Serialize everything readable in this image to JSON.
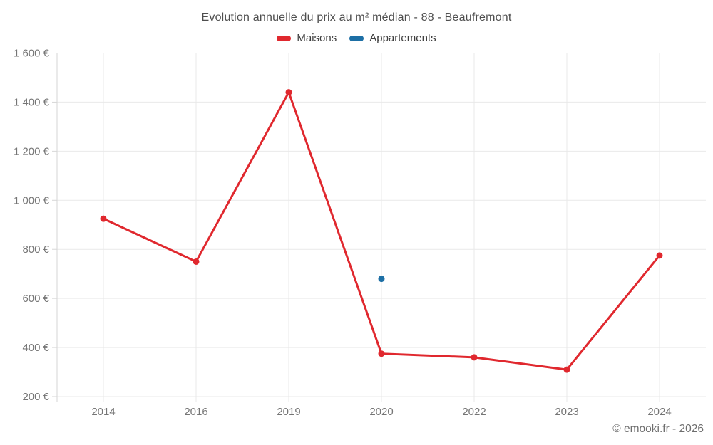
{
  "title": "Evolution annuelle du prix au m² médian - 88 - Beaufremont",
  "copyright": "© emooki.fr - 2026",
  "colors": {
    "maisons_red": "#e0282e",
    "appartements_blue": "#1d6fa5",
    "gridline": "#e9e9e9",
    "axis_line": "#d6d6d6",
    "tick_text": "#757575",
    "title_text": "#4e4e4e",
    "legend_text": "#3d3d3d"
  },
  "chart_data": {
    "type": "line",
    "title": "Evolution annuelle du prix au m² médian - 88 - Beaufremont",
    "categories": [
      "2014",
      "2016",
      "2019",
      "2020",
      "2022",
      "2023",
      "2024"
    ],
    "series": [
      {
        "name": "Maisons",
        "color": "#e0282e",
        "style": "line+markers",
        "values": [
          925,
          750,
          1440,
          375,
          360,
          310,
          775
        ]
      },
      {
        "name": "Appartements",
        "color": "#1d6fa5",
        "style": "markers",
        "values": [
          null,
          null,
          null,
          680,
          null,
          null,
          null
        ]
      }
    ],
    "xlabel": "",
    "ylabel": "",
    "ylim": [
      200,
      1600
    ],
    "y_tick_step": 200,
    "y_tick_labels": [
      "200 €",
      "400 €",
      "600 €",
      "800 €",
      "1 000 €",
      "1 200 €",
      "1 400 €",
      "1 600 €"
    ],
    "grid": true,
    "legend_position": "top-center"
  }
}
